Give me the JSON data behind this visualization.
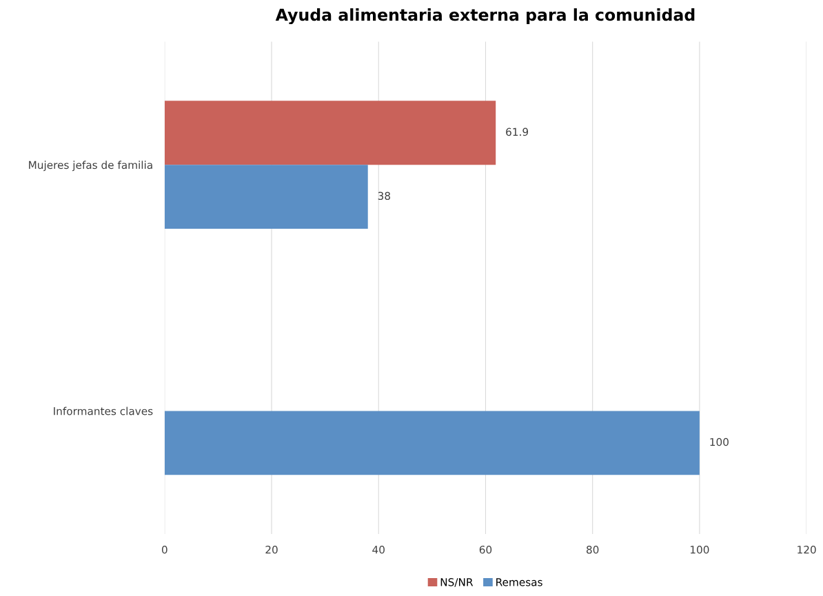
{
  "chart_data": {
    "type": "bar",
    "orientation": "horizontal",
    "title": "Ayuda alimentaria externa para la comunidad",
    "categories": [
      "Mujeres jefas de familia",
      "Informantes claves"
    ],
    "series": [
      {
        "name": "NS/NR",
        "color": "#c9625a",
        "values": [
          61.9,
          null
        ]
      },
      {
        "name": "Remesas",
        "color": "#5b8fc5",
        "values": [
          38,
          100
        ]
      }
    ],
    "xlim": [
      0,
      120
    ],
    "xticks": [
      0,
      20,
      40,
      60,
      80,
      100,
      120
    ],
    "grid": "x",
    "legend": "bottom",
    "data_labels": true
  }
}
